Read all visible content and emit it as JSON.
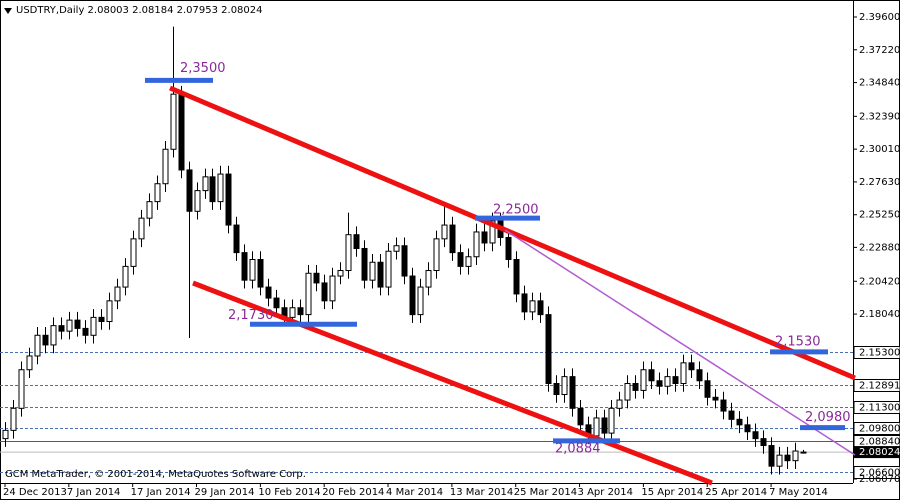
{
  "chart_data": {
    "type": "candlestick",
    "title": "USDTRY,Daily  2.08003 2.08184 2.07953 2.08024",
    "footer": "GCM MetaTrader, © 2001-2014, MetaQuotes Software Corp.",
    "ylim": [
      2.0607,
      2.396
    ],
    "yticks": [
      {
        "value": 2.396,
        "label": "2.39600"
      },
      {
        "value": 2.3722,
        "label": "2.37220"
      },
      {
        "value": 2.3484,
        "label": "2.34840"
      },
      {
        "value": 2.3239,
        "label": "2.32390"
      },
      {
        "value": 2.3001,
        "label": "2.30010"
      },
      {
        "value": 2.2763,
        "label": "2.27630"
      },
      {
        "value": 2.2525,
        "label": "2.25250"
      },
      {
        "value": 2.2288,
        "label": "2.22880"
      },
      {
        "value": 2.2042,
        "label": "2.20420"
      },
      {
        "value": 2.1804,
        "label": "2.18040"
      },
      {
        "value": 2.0607,
        "label": "2.06070"
      }
    ],
    "levels": [
      {
        "value": 2.153,
        "label": "2.15300"
      },
      {
        "value": 2.12891,
        "label": "2.12891"
      },
      {
        "value": 2.113,
        "label": "2.11300"
      },
      {
        "value": 2.098,
        "label": "2.09800"
      },
      {
        "value": 2.0884,
        "label": "2.08840"
      },
      {
        "value": 2.066,
        "label": "2.06600"
      }
    ],
    "current_price": 2.08024,
    "annotations": [
      {
        "value": 2.35,
        "label": "2,3500"
      },
      {
        "value": 2.25,
        "label": "2,2500"
      },
      {
        "value": 2.173,
        "label": "2,1730"
      },
      {
        "value": 2.0884,
        "label": "2,0884"
      },
      {
        "value": 2.153,
        "label": "2,1530"
      },
      {
        "value": 2.098,
        "label": "2,0980"
      }
    ],
    "categories": [
      "24 Dec 2013",
      null,
      null,
      null,
      null,
      null,
      null,
      null,
      "7 Jan 2014",
      null,
      null,
      null,
      null,
      null,
      null,
      null,
      "17 Jan 2014",
      null,
      null,
      null,
      null,
      null,
      null,
      null,
      "29 Jan 2014",
      null,
      null,
      null,
      null,
      null,
      null,
      null,
      "10 Feb 2014",
      null,
      null,
      null,
      null,
      null,
      null,
      null,
      "20 Feb 2014",
      null,
      null,
      null,
      null,
      null,
      null,
      null,
      "4 Mar 2014",
      null,
      null,
      null,
      null,
      null,
      null,
      null,
      "13 Mar 2014",
      null,
      null,
      null,
      null,
      null,
      null,
      null,
      "25 Mar 2014",
      null,
      null,
      null,
      null,
      null,
      null,
      null,
      "3 Apr 2014",
      null,
      null,
      null,
      null,
      null,
      null,
      null,
      "15 Apr 2014",
      null,
      null,
      null,
      null,
      null,
      null,
      null,
      "25 Apr 2014",
      null,
      null,
      null,
      null,
      null,
      null,
      null,
      "7 May 2014",
      null,
      null,
      null,
      null
    ],
    "ohlc": [
      [
        2.09,
        2.102,
        2.084,
        2.096
      ],
      [
        2.096,
        2.118,
        2.09,
        2.112
      ],
      [
        2.112,
        2.146,
        2.106,
        2.14
      ],
      [
        2.14,
        2.156,
        2.134,
        2.15
      ],
      [
        2.15,
        2.171,
        2.144,
        2.165
      ],
      [
        2.165,
        2.171,
        2.152,
        2.158
      ],
      [
        2.158,
        2.178,
        2.152,
        2.172
      ],
      [
        2.172,
        2.178,
        2.162,
        2.168
      ],
      [
        2.168,
        2.182,
        2.162,
        2.176
      ],
      [
        2.176,
        2.182,
        2.164,
        2.17
      ],
      [
        2.17,
        2.176,
        2.159,
        2.165
      ],
      [
        2.165,
        2.184,
        2.159,
        2.178
      ],
      [
        2.178,
        2.184,
        2.169,
        2.175
      ],
      [
        2.175,
        2.196,
        2.169,
        2.19
      ],
      [
        2.19,
        2.206,
        2.184,
        2.2
      ],
      [
        2.2,
        2.221,
        2.194,
        2.215
      ],
      [
        2.215,
        2.241,
        2.209,
        2.235
      ],
      [
        2.235,
        2.256,
        2.229,
        2.25
      ],
      [
        2.25,
        2.268,
        2.244,
        2.262
      ],
      [
        2.262,
        2.281,
        2.256,
        2.275
      ],
      [
        2.275,
        2.306,
        2.269,
        2.3
      ],
      [
        2.3,
        2.389,
        2.294,
        2.34
      ],
      [
        2.34,
        2.346,
        2.279,
        2.285
      ],
      [
        2.285,
        2.291,
        2.163,
        2.255
      ],
      [
        2.255,
        2.276,
        2.249,
        2.27
      ],
      [
        2.27,
        2.286,
        2.264,
        2.28
      ],
      [
        2.28,
        2.286,
        2.256,
        2.262
      ],
      [
        2.262,
        2.288,
        2.256,
        2.282
      ],
      [
        2.282,
        2.288,
        2.239,
        2.245
      ],
      [
        2.245,
        2.251,
        2.219,
        2.225
      ],
      [
        2.225,
        2.231,
        2.199,
        2.205
      ],
      [
        2.205,
        2.226,
        2.199,
        2.22
      ],
      [
        2.22,
        2.226,
        2.194,
        2.2
      ],
      [
        2.2,
        2.206,
        2.186,
        2.192
      ],
      [
        2.192,
        2.198,
        2.179,
        2.185
      ],
      [
        2.185,
        2.191,
        2.172,
        2.178
      ],
      [
        2.178,
        2.191,
        2.172,
        2.185
      ],
      [
        2.185,
        2.191,
        2.174,
        2.18
      ],
      [
        2.18,
        2.216,
        2.174,
        2.21
      ],
      [
        2.21,
        2.216,
        2.197,
        2.203
      ],
      [
        2.203,
        2.209,
        2.184,
        2.19
      ],
      [
        2.19,
        2.214,
        2.184,
        2.208
      ],
      [
        2.208,
        2.218,
        2.202,
        2.212
      ],
      [
        2.212,
        2.254,
        2.206,
        2.238
      ],
      [
        2.238,
        2.244,
        2.222,
        2.228
      ],
      [
        2.228,
        2.234,
        2.199,
        2.205
      ],
      [
        2.205,
        2.224,
        2.199,
        2.218
      ],
      [
        2.218,
        2.224,
        2.194,
        2.2
      ],
      [
        2.2,
        2.232,
        2.194,
        2.226
      ],
      [
        2.226,
        2.236,
        2.22,
        2.23
      ],
      [
        2.23,
        2.236,
        2.202,
        2.208
      ],
      [
        2.208,
        2.214,
        2.174,
        2.18
      ],
      [
        2.18,
        2.206,
        2.174,
        2.2
      ],
      [
        2.2,
        2.218,
        2.194,
        2.212
      ],
      [
        2.212,
        2.241,
        2.206,
        2.235
      ],
      [
        2.235,
        2.26,
        2.229,
        2.245
      ],
      [
        2.245,
        2.251,
        2.219,
        2.225
      ],
      [
        2.225,
        2.231,
        2.209,
        2.215
      ],
      [
        2.215,
        2.228,
        2.209,
        2.222
      ],
      [
        2.222,
        2.246,
        2.216,
        2.24
      ],
      [
        2.24,
        2.246,
        2.226,
        2.232
      ],
      [
        2.232,
        2.254,
        2.226,
        2.248
      ],
      [
        2.248,
        2.254,
        2.23,
        2.236
      ],
      [
        2.236,
        2.242,
        2.214,
        2.22
      ],
      [
        2.22,
        2.226,
        2.189,
        2.195
      ],
      [
        2.195,
        2.201,
        2.176,
        2.182
      ],
      [
        2.182,
        2.196,
        2.176,
        2.19
      ],
      [
        2.19,
        2.196,
        2.174,
        2.18
      ],
      [
        2.18,
        2.186,
        2.124,
        2.13
      ],
      [
        2.13,
        2.136,
        2.116,
        2.122
      ],
      [
        2.122,
        2.141,
        2.116,
        2.135
      ],
      [
        2.135,
        2.141,
        2.106,
        2.112
      ],
      [
        2.112,
        2.118,
        2.094,
        2.1
      ],
      [
        2.1,
        2.106,
        2.086,
        2.092
      ],
      [
        2.092,
        2.111,
        2.086,
        2.105
      ],
      [
        2.105,
        2.111,
        2.088,
        2.094
      ],
      [
        2.094,
        2.118,
        2.088,
        2.112
      ],
      [
        2.112,
        2.124,
        2.106,
        2.118
      ],
      [
        2.118,
        2.136,
        2.112,
        2.13
      ],
      [
        2.13,
        2.136,
        2.119,
        2.125
      ],
      [
        2.125,
        2.146,
        2.119,
        2.14
      ],
      [
        2.14,
        2.146,
        2.126,
        2.132
      ],
      [
        2.132,
        2.138,
        2.122,
        2.128
      ],
      [
        2.128,
        2.141,
        2.122,
        2.135
      ],
      [
        2.135,
        2.141,
        2.124,
        2.13
      ],
      [
        2.13,
        2.151,
        2.124,
        2.145
      ],
      [
        2.145,
        2.151,
        2.134,
        2.14
      ],
      [
        2.14,
        2.146,
        2.126,
        2.132
      ],
      [
        2.132,
        2.138,
        2.114,
        2.12
      ],
      [
        2.12,
        2.126,
        2.112,
        2.118
      ],
      [
        2.118,
        2.124,
        2.104,
        2.11
      ],
      [
        2.11,
        2.116,
        2.098,
        2.104
      ],
      [
        2.104,
        2.11,
        2.094,
        2.1
      ],
      [
        2.1,
        2.106,
        2.089,
        2.095
      ],
      [
        2.095,
        2.101,
        2.084,
        2.09
      ],
      [
        2.09,
        2.096,
        2.079,
        2.085
      ],
      [
        2.085,
        2.091,
        2.064,
        2.07
      ],
      [
        2.07,
        2.084,
        2.064,
        2.078
      ],
      [
        2.078,
        2.084,
        2.068,
        2.074
      ],
      [
        2.074,
        2.087,
        2.068,
        2.081
      ],
      [
        2.08003,
        2.08184,
        2.07953,
        2.08024
      ]
    ]
  }
}
